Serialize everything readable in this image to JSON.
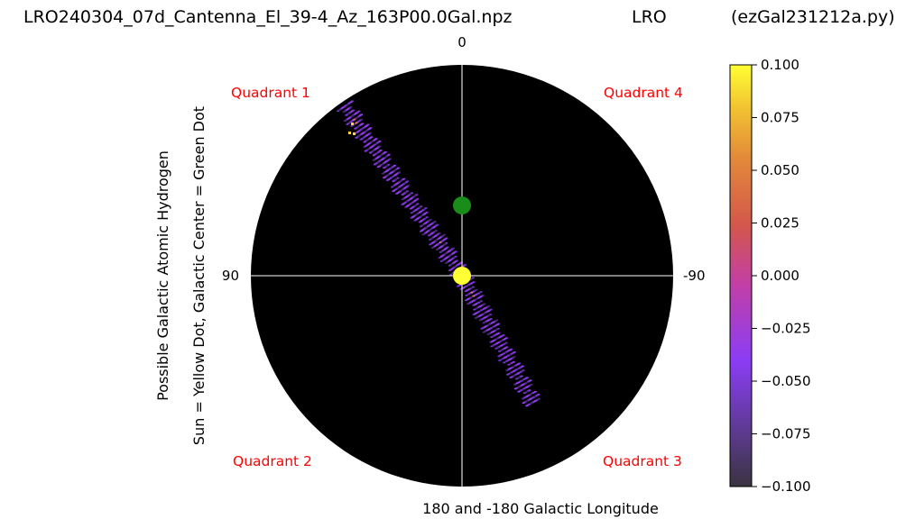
{
  "header": {
    "file_title": "LRO240304_07d_Cantenna_El_39-4_Az_163P00.0Gal.npz",
    "site": "LRO",
    "program": "(ezGal231212a.py)"
  },
  "chart_data": {
    "type": "heatmap",
    "projection": "polar galactic plane map",
    "xlabel": "180 and -180 Galactic Longitude",
    "ylabel_line1": "Possible Galactic Atomic Hydrogen",
    "ylabel_line2": "Sun = Yellow Dot, Galactic Center = Green Dot",
    "angle_labels": {
      "top": "0",
      "left": "90",
      "right": "-90"
    },
    "quadrant_labels": {
      "q1": "Quadrant 1",
      "q2": "Quadrant 2",
      "q3": "Quadrant 3",
      "q4": "Quadrant 4"
    },
    "colorbar": {
      "colormap": "plasma-like (dark purple to yellow)",
      "range": [
        -0.1,
        0.1
      ],
      "ticks": [
        "0.100",
        "0.075",
        "0.050",
        "0.025",
        "0.000",
        "−0.025",
        "−0.050",
        "−0.075",
        "−0.100"
      ]
    },
    "background_color": "#000000",
    "sun_color": "#ffff33",
    "galactic_center_color": "#1a8c1a",
    "grid": true,
    "data_streaks": [
      {
        "name": "longitude ~45 deg track (Quadrant 1 side)",
        "direction": "upper-left"
      },
      {
        "name": "longitude ~ -150 deg track (Quadrant 3 side)",
        "direction": "lower-right"
      }
    ]
  }
}
